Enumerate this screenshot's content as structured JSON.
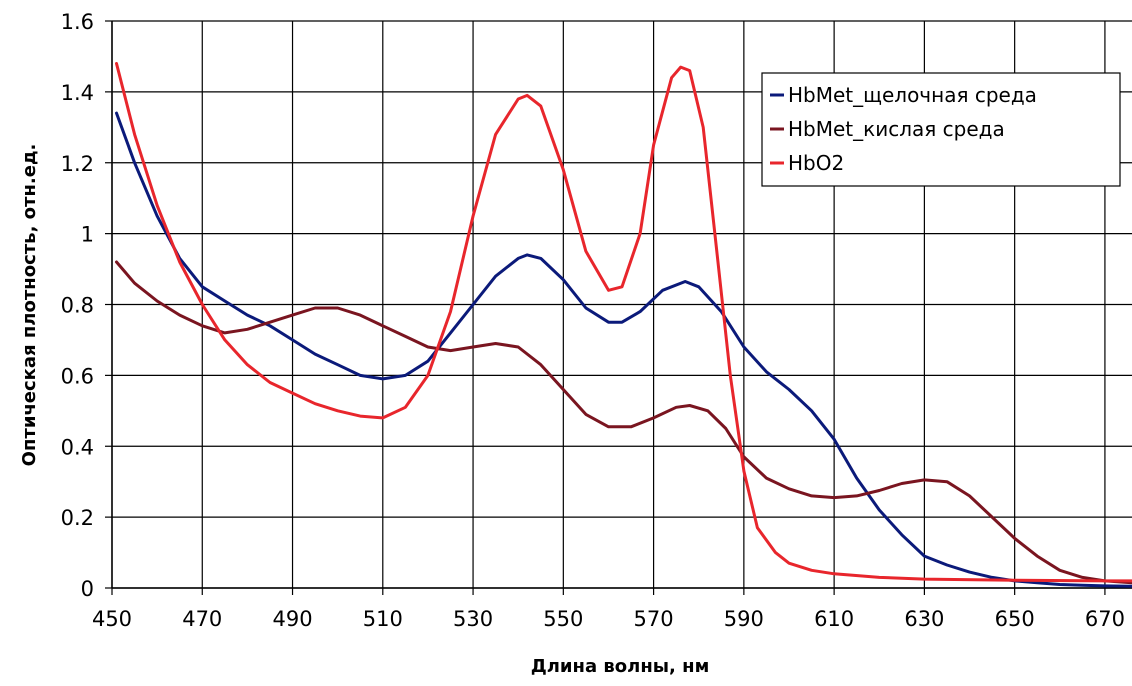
{
  "chart_data": {
    "type": "line",
    "title": "",
    "xlabel": "Длина волны, нм",
    "ylabel": "Оптическая плотность, отн.ед.",
    "xlim": [
      450,
      676
    ],
    "ylim": [
      0,
      1.6
    ],
    "x_ticks": [
      "450",
      "470",
      "490",
      "510",
      "530",
      "550",
      "570",
      "590",
      "610",
      "630",
      "650",
      "670"
    ],
    "y_ticks": [
      "0",
      "0.2",
      "0.4",
      "0.6",
      "0.8",
      "1",
      "1.2",
      "1.4",
      "1.6"
    ],
    "grid": true,
    "legend_position": "top-right",
    "series": [
      {
        "name": "HbMet_щелочная среда",
        "color": "#0b1a7a",
        "points": [
          [
            451,
            1.34
          ],
          [
            455,
            1.2
          ],
          [
            460,
            1.05
          ],
          [
            465,
            0.93
          ],
          [
            470,
            0.85
          ],
          [
            475,
            0.81
          ],
          [
            480,
            0.77
          ],
          [
            485,
            0.74
          ],
          [
            490,
            0.7
          ],
          [
            495,
            0.66
          ],
          [
            500,
            0.63
          ],
          [
            505,
            0.6
          ],
          [
            510,
            0.59
          ],
          [
            515,
            0.6
          ],
          [
            520,
            0.64
          ],
          [
            525,
            0.72
          ],
          [
            530,
            0.8
          ],
          [
            535,
            0.88
          ],
          [
            540,
            0.93
          ],
          [
            542,
            0.94
          ],
          [
            545,
            0.93
          ],
          [
            550,
            0.87
          ],
          [
            555,
            0.79
          ],
          [
            560,
            0.75
          ],
          [
            563,
            0.75
          ],
          [
            567,
            0.78
          ],
          [
            572,
            0.84
          ],
          [
            577,
            0.865
          ],
          [
            580,
            0.85
          ],
          [
            585,
            0.78
          ],
          [
            590,
            0.68
          ],
          [
            595,
            0.61
          ],
          [
            600,
            0.56
          ],
          [
            605,
            0.5
          ],
          [
            610,
            0.42
          ],
          [
            615,
            0.31
          ],
          [
            620,
            0.22
          ],
          [
            625,
            0.15
          ],
          [
            630,
            0.09
          ],
          [
            635,
            0.065
          ],
          [
            640,
            0.045
          ],
          [
            645,
            0.03
          ],
          [
            650,
            0.02
          ],
          [
            655,
            0.015
          ],
          [
            660,
            0.01
          ],
          [
            665,
            0.008
          ],
          [
            670,
            0.006
          ],
          [
            676,
            0.005
          ]
        ]
      },
      {
        "name": "HbMet_кислая среда",
        "color": "#7a1520",
        "points": [
          [
            451,
            0.92
          ],
          [
            455,
            0.86
          ],
          [
            460,
            0.81
          ],
          [
            465,
            0.77
          ],
          [
            470,
            0.74
          ],
          [
            475,
            0.72
          ],
          [
            480,
            0.73
          ],
          [
            485,
            0.75
          ],
          [
            490,
            0.77
          ],
          [
            495,
            0.79
          ],
          [
            500,
            0.79
          ],
          [
            505,
            0.77
          ],
          [
            510,
            0.74
          ],
          [
            515,
            0.71
          ],
          [
            520,
            0.68
          ],
          [
            525,
            0.67
          ],
          [
            530,
            0.68
          ],
          [
            535,
            0.69
          ],
          [
            540,
            0.68
          ],
          [
            545,
            0.63
          ],
          [
            550,
            0.56
          ],
          [
            555,
            0.49
          ],
          [
            560,
            0.455
          ],
          [
            565,
            0.455
          ],
          [
            570,
            0.48
          ],
          [
            575,
            0.51
          ],
          [
            578,
            0.515
          ],
          [
            582,
            0.5
          ],
          [
            586,
            0.45
          ],
          [
            590,
            0.37
          ],
          [
            595,
            0.31
          ],
          [
            600,
            0.28
          ],
          [
            605,
            0.26
          ],
          [
            610,
            0.255
          ],
          [
            615,
            0.26
          ],
          [
            620,
            0.275
          ],
          [
            625,
            0.295
          ],
          [
            630,
            0.305
          ],
          [
            635,
            0.3
          ],
          [
            640,
            0.26
          ],
          [
            645,
            0.2
          ],
          [
            650,
            0.14
          ],
          [
            655,
            0.09
          ],
          [
            660,
            0.05
          ],
          [
            665,
            0.03
          ],
          [
            670,
            0.02
          ],
          [
            676,
            0.015
          ]
        ]
      },
      {
        "name": "HbO2",
        "color": "#e8262c",
        "points": [
          [
            451,
            1.48
          ],
          [
            455,
            1.28
          ],
          [
            460,
            1.08
          ],
          [
            465,
            0.92
          ],
          [
            470,
            0.8
          ],
          [
            475,
            0.7
          ],
          [
            480,
            0.63
          ],
          [
            485,
            0.58
          ],
          [
            490,
            0.55
          ],
          [
            495,
            0.52
          ],
          [
            500,
            0.5
          ],
          [
            505,
            0.485
          ],
          [
            510,
            0.48
          ],
          [
            515,
            0.51
          ],
          [
            520,
            0.6
          ],
          [
            525,
            0.78
          ],
          [
            530,
            1.05
          ],
          [
            535,
            1.28
          ],
          [
            540,
            1.38
          ],
          [
            542,
            1.39
          ],
          [
            545,
            1.36
          ],
          [
            550,
            1.18
          ],
          [
            555,
            0.95
          ],
          [
            560,
            0.84
          ],
          [
            563,
            0.85
          ],
          [
            567,
            1.0
          ],
          [
            570,
            1.25
          ],
          [
            574,
            1.44
          ],
          [
            576,
            1.47
          ],
          [
            578,
            1.46
          ],
          [
            581,
            1.3
          ],
          [
            584,
            0.95
          ],
          [
            587,
            0.6
          ],
          [
            590,
            0.33
          ],
          [
            593,
            0.17
          ],
          [
            597,
            0.1
          ],
          [
            600,
            0.07
          ],
          [
            605,
            0.05
          ],
          [
            610,
            0.04
          ],
          [
            620,
            0.03
          ],
          [
            630,
            0.025
          ],
          [
            650,
            0.022
          ],
          [
            670,
            0.02
          ],
          [
            676,
            0.02
          ]
        ]
      }
    ]
  }
}
